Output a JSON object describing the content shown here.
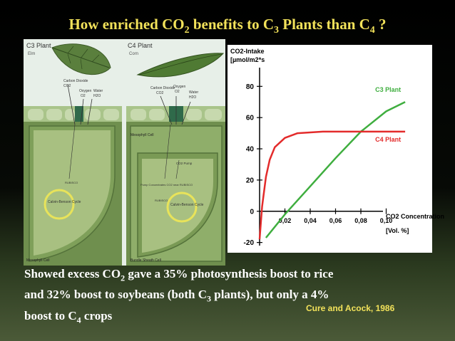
{
  "slide": {
    "title": {
      "pre": "How enriched CO",
      "s1": "2",
      "mid": " benefits to C",
      "s2": "3",
      "mid2": " Plants than C",
      "s3": "4",
      "post": " ?"
    },
    "body": {
      "p1": "Showed excess CO",
      "s1": "2",
      "p2": " gave a 35% photosynthesis boost to rice",
      "p3": "and 32% boost to soybeans (both C",
      "s2": "3",
      "p4": " plants), but only a 4%",
      "p5": "boost to C",
      "s3": "4",
      "p6": " crops"
    },
    "citation": "Cure and Acock, 1986"
  },
  "diagram": {
    "c3_label": "C3 Plant",
    "c3_sub": "Elm",
    "c4_label": "C4 Plant",
    "c4_sub": "Corn",
    "c3_gases": [
      "Carbon Dioxide",
      "CO2",
      "Oxygen",
      "O2",
      "Water",
      "H2O"
    ],
    "c4_gases": [
      "Carbon Dioxide",
      "CO2",
      "Oxygen",
      "O2",
      "Water",
      "H2O"
    ],
    "c3_cycle": "Calvin-Benson Cycle",
    "c4_cycle": "Calvin-Benson Cycle",
    "c3_rubisco": "RUBISCO",
    "c4_rubisco": "RUBISCO",
    "c3_cell": "Mesophyll Cell",
    "c4_cell_top": "Mesophyll Cell",
    "c4_cell_bottom": "Bundle Sheath Cell",
    "pump": "CO2 Pump",
    "pump_conc": "Pump Concentrates CO2 near RUBISCO",
    "colors": {
      "leaf": "#4f7a3a",
      "cell": "#7a9a55",
      "cycle": "#e8e35a"
    }
  },
  "chart_data": {
    "type": "line",
    "ylabel_lines": [
      "CO2-Intake",
      "[µmol/m2*s"
    ],
    "xlabel_lines": [
      "CO2 Concentration",
      "[Vol. %]"
    ],
    "xlim": [
      0,
      0.12
    ],
    "ylim": [
      -22,
      92
    ],
    "xticks": [
      0.02,
      0.04,
      0.06,
      0.08,
      0.1
    ],
    "xtick_labels": [
      "0,02",
      "0,04",
      "0,06",
      "0,08",
      "0,10"
    ],
    "yticks": [
      -20,
      0,
      20,
      40,
      60,
      80
    ],
    "series": [
      {
        "name": "C3 Plant",
        "color": "#3fae3f",
        "x": [
          0.005,
          0.02,
          0.04,
          0.06,
          0.08,
          0.1,
          0.115
        ],
        "y": [
          -17,
          -2,
          16,
          34,
          51,
          64,
          70
        ]
      },
      {
        "name": "C4 Plant",
        "color": "#e32b2b",
        "x": [
          0.0,
          0.002,
          0.005,
          0.008,
          0.012,
          0.02,
          0.03,
          0.05,
          0.08,
          0.1,
          0.115
        ],
        "y": [
          -18,
          3,
          22,
          33,
          41,
          47,
          50,
          51,
          51,
          51,
          51
        ]
      }
    ]
  }
}
